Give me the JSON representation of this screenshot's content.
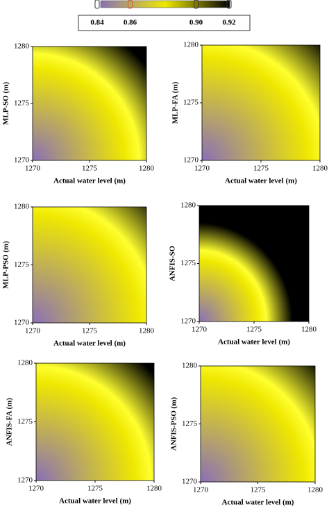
{
  "colorbar": {
    "ticks": [
      0.84,
      0.86,
      {
        "value": 0.9,
        "label": "0.90"
      },
      0.92
    ],
    "colors": [
      "#8a6fb8",
      "#efe800",
      "#000000"
    ]
  },
  "chart_data": [
    {
      "type": "heatmap",
      "ylabel": "MLP-SO (m)",
      "xlabel": "Actual water level (m)",
      "xlim": [
        1270,
        1280
      ],
      "ylim": [
        1270,
        1280
      ],
      "xticks": [
        1270,
        1275,
        1280
      ],
      "yticks": [
        1270,
        1275,
        1280
      ]
    },
    {
      "type": "heatmap",
      "ylabel": "MLP-FA (m)",
      "xlabel": "Actual water level (m)",
      "xlim": [
        1270,
        1280
      ],
      "ylim": [
        1270,
        1280
      ],
      "xticks": [
        1270,
        1275,
        1280
      ],
      "yticks": [
        1270,
        1275,
        1280
      ]
    },
    {
      "type": "heatmap",
      "ylabel": "MLP-PSO (m)",
      "xlabel": "Actual water level (m)",
      "xlim": [
        1270,
        1280
      ],
      "ylim": [
        1270,
        1280
      ],
      "xticks": [
        1270,
        1275,
        1280
      ],
      "yticks": [
        1270,
        1275,
        1280
      ]
    },
    {
      "type": "heatmap",
      "ylabel": "ANFIS-SO",
      "xlabel": "Actual water level (m)",
      "xlim": [
        1270,
        1280
      ],
      "ylim": [
        1270,
        1280
      ],
      "xticks": [
        1270,
        1275,
        1280
      ],
      "yticks": [
        1270,
        1275,
        1280
      ]
    },
    {
      "type": "heatmap",
      "ylabel": "ANFIS-FA (m)",
      "xlabel": "Actual water level (m)",
      "xlim": [
        1270,
        1280
      ],
      "ylim": [
        1270,
        1280
      ],
      "xticks": [
        1270,
        1275,
        1280
      ],
      "yticks": [
        1270,
        1275,
        1280
      ]
    },
    {
      "type": "heatmap",
      "ylabel": "ANFIS-PSO (m)",
      "xlabel": "Actual water level (m)",
      "xlim": [
        1270,
        1280
      ],
      "ylim": [
        1270,
        1280
      ],
      "xticks": [
        1270,
        1275,
        1280
      ],
      "yticks": [
        1270,
        1275,
        1280
      ]
    }
  ]
}
